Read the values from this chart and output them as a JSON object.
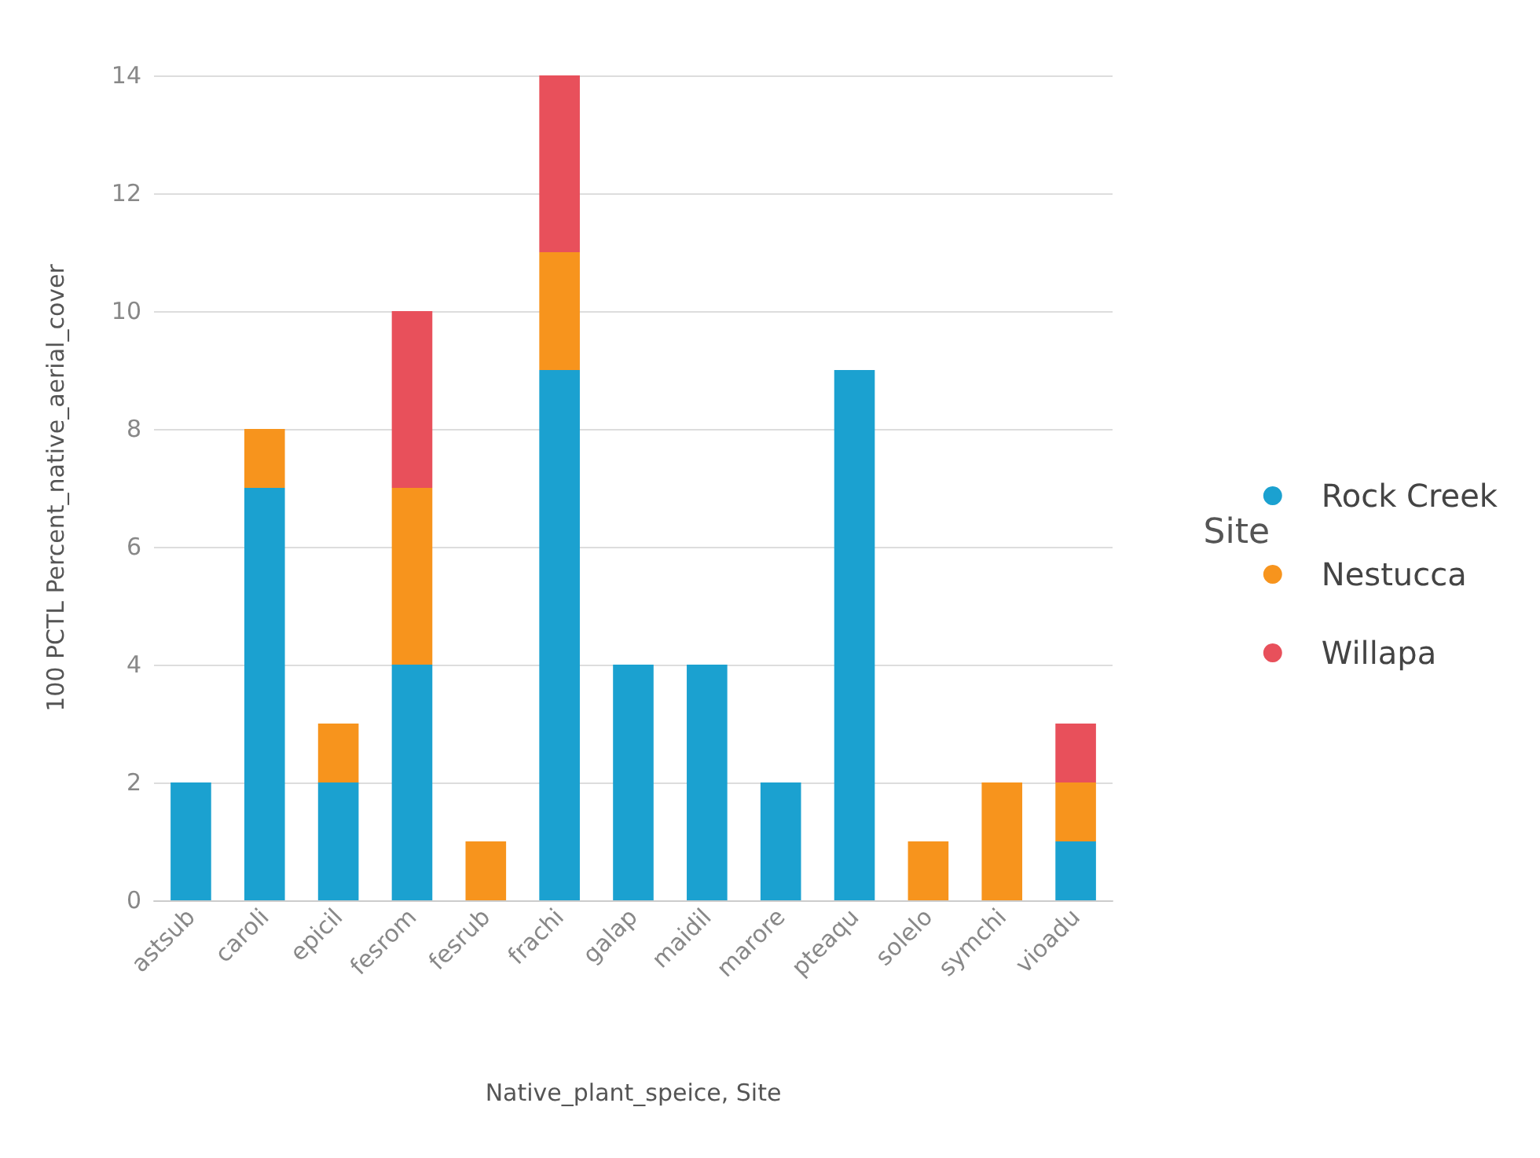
{
  "chart_data": {
    "type": "bar",
    "stacked": true,
    "xlabel": "Native_plant_speice, Site",
    "ylabel": "100 PCTL Percent_native_aerial_cover",
    "legend_title": "Site",
    "legend": "right",
    "categories": [
      "astsub",
      "caroli",
      "epicil",
      "fesrom",
      "fesrub",
      "frachi",
      "galap",
      "maidil",
      "marore",
      "pteaqu",
      "solelo",
      "symchi",
      "vioadu"
    ],
    "series": [
      {
        "name": "Rock Creek",
        "color": "#1ba1d0",
        "values": [
          2,
          7,
          2,
          4,
          null,
          9,
          4,
          4,
          2,
          9,
          null,
          null,
          1
        ]
      },
      {
        "name": "Nestucca",
        "color": "#f7941d",
        "values": [
          null,
          1,
          1,
          3,
          1,
          2,
          null,
          null,
          null,
          null,
          1,
          2,
          1
        ]
      },
      {
        "name": "Willapa",
        "color": "#e8505b",
        "values": [
          null,
          null,
          null,
          3,
          null,
          3,
          null,
          null,
          null,
          null,
          null,
          null,
          1
        ]
      }
    ],
    "ylim": [
      0,
      14
    ],
    "yticks": [
      0,
      2,
      4,
      6,
      8,
      10,
      12,
      14
    ],
    "grid": "y"
  }
}
